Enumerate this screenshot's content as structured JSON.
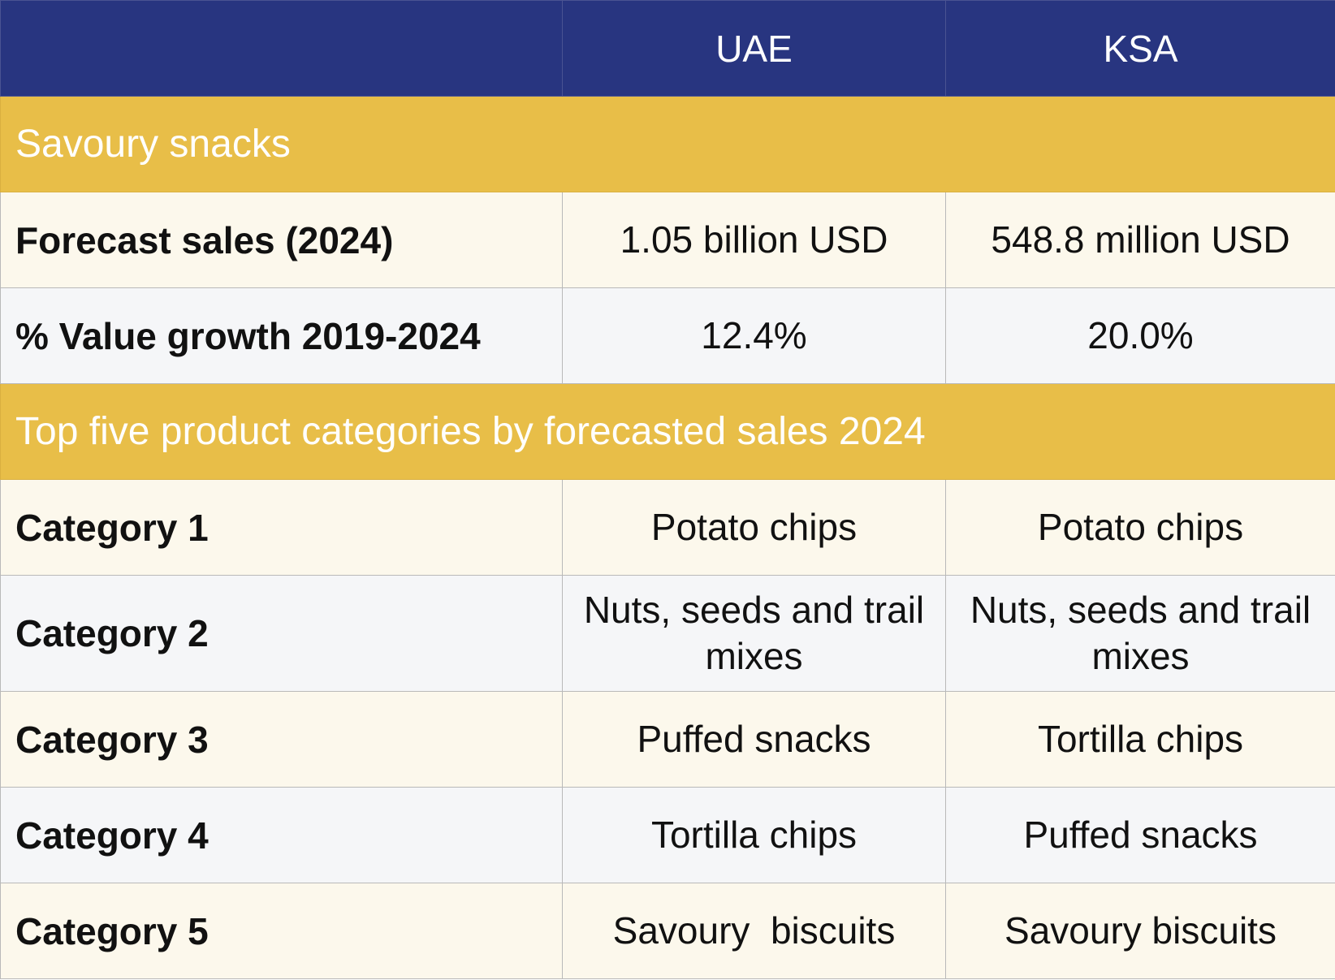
{
  "header": {
    "blank": "",
    "col1": "UAE",
    "col2": "KSA"
  },
  "sections": [
    {
      "title": "Savoury snacks",
      "rows": [
        {
          "label": "Forecast sales (2024)",
          "uae": "1.05 billion USD",
          "ksa": "548.8 million USD"
        },
        {
          "label": "% Value growth 2019-2024",
          "uae": "12.4%",
          "ksa": "20.0%"
        }
      ]
    },
    {
      "title": "Top five product categories by forecasted sales 2024",
      "rows": [
        {
          "label": "Category 1",
          "uae": "Potato chips",
          "ksa": "Potato chips"
        },
        {
          "label": "Category 2",
          "uae": "Nuts, seeds and trail mixes",
          "ksa": "Nuts, seeds and trail mixes"
        },
        {
          "label": "Category 3",
          "uae": "Puffed snacks",
          "ksa": "Tortilla chips"
        },
        {
          "label": "Category 4",
          "uae": "Tortilla chips",
          "ksa": "Puffed snacks"
        },
        {
          "label": "Category 5",
          "uae": "Savoury  biscuits",
          "ksa": "Savoury biscuits"
        }
      ]
    }
  ],
  "colors": {
    "header": "#283580",
    "section": "#E8BE48",
    "cream": "#FCF8EC",
    "gray": "#F5F6F8"
  }
}
